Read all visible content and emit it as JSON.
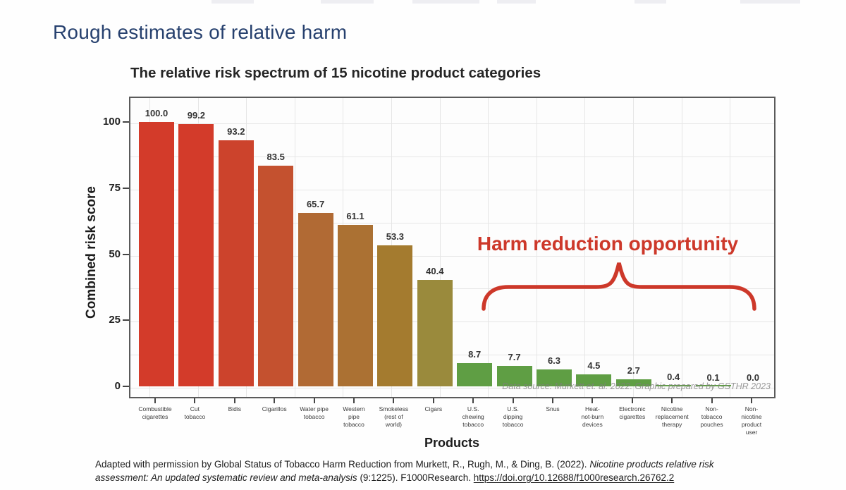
{
  "page": {
    "slide_title": "Rough estimates of relative harm"
  },
  "chart_data": {
    "type": "bar",
    "title": "The relative risk spectrum of 15 nicotine product categories",
    "xlabel": "Products",
    "ylabel": "Combined risk score",
    "ylim": [
      0,
      100
    ],
    "yticks": [
      0,
      25,
      50,
      75,
      100
    ],
    "grid": true,
    "legend": "none",
    "categories": [
      "Combustible\ncigarettes",
      "Cut\ntobacco",
      "Bidis",
      "Cigarillos",
      "Water pipe\ntobacco",
      "Western\npipe\ntobacco",
      "Smokeless\n(rest of\nworld)",
      "Cigars",
      "U.S.\nchewing\ntobacco",
      "U.S.\ndipping\ntobacco",
      "Snus",
      "Heat-\nnot-burn\ndevices",
      "Electronic\ncigarettes",
      "Nicotine\nreplacement\ntherapy",
      "Non-\ntobacco\npouches",
      "Non-\nnicotine\nproduct\nuser"
    ],
    "values": [
      100.0,
      99.2,
      93.2,
      83.5,
      65.7,
      61.1,
      53.3,
      40.4,
      8.7,
      7.7,
      6.3,
      4.5,
      2.7,
      0.4,
      0.1,
      0.0
    ],
    "value_labels": [
      "100.0",
      "99.2",
      "93.2",
      "83.5",
      "65.7",
      "61.1",
      "53.3",
      "40.4",
      "8.7",
      "7.7",
      "6.3",
      "4.5",
      "2.7",
      "0.4",
      "0.1",
      "0.0"
    ],
    "bar_colors": [
      "#d33b2a",
      "#d33b2a",
      "#cc432c",
      "#c4512f",
      "#b16a34",
      "#ab7133",
      "#a47b2f",
      "#9a8a3c",
      "#5f9e44",
      "#5f9e44",
      "#5f9e44",
      "#5f9e44",
      "#5f9e44",
      "#5f9e44",
      "#5f9e44",
      "#5f9e44"
    ],
    "annotation": {
      "text": "Harm reduction opportunity",
      "color": "#cd382a",
      "covers": "U.S. chewing tobacco through Non-nicotine product user"
    },
    "source_note": "Data source: Murkett et. al. 2022. Graphic prepared by GSTHR 2023"
  },
  "footer": {
    "part1": "Adapted with permission by Global Status of Tobacco Harm Reduction from Murkett, R., Rugh, M., & Ding, B. (2022). ",
    "part2_italic": "Nicotine products relative risk assessment: An updated systematic review and meta-analysis ",
    "part3": "(9:1225). F1000Research. ",
    "link": "https://doi.org/10.12688/f1000research.26762.2"
  }
}
